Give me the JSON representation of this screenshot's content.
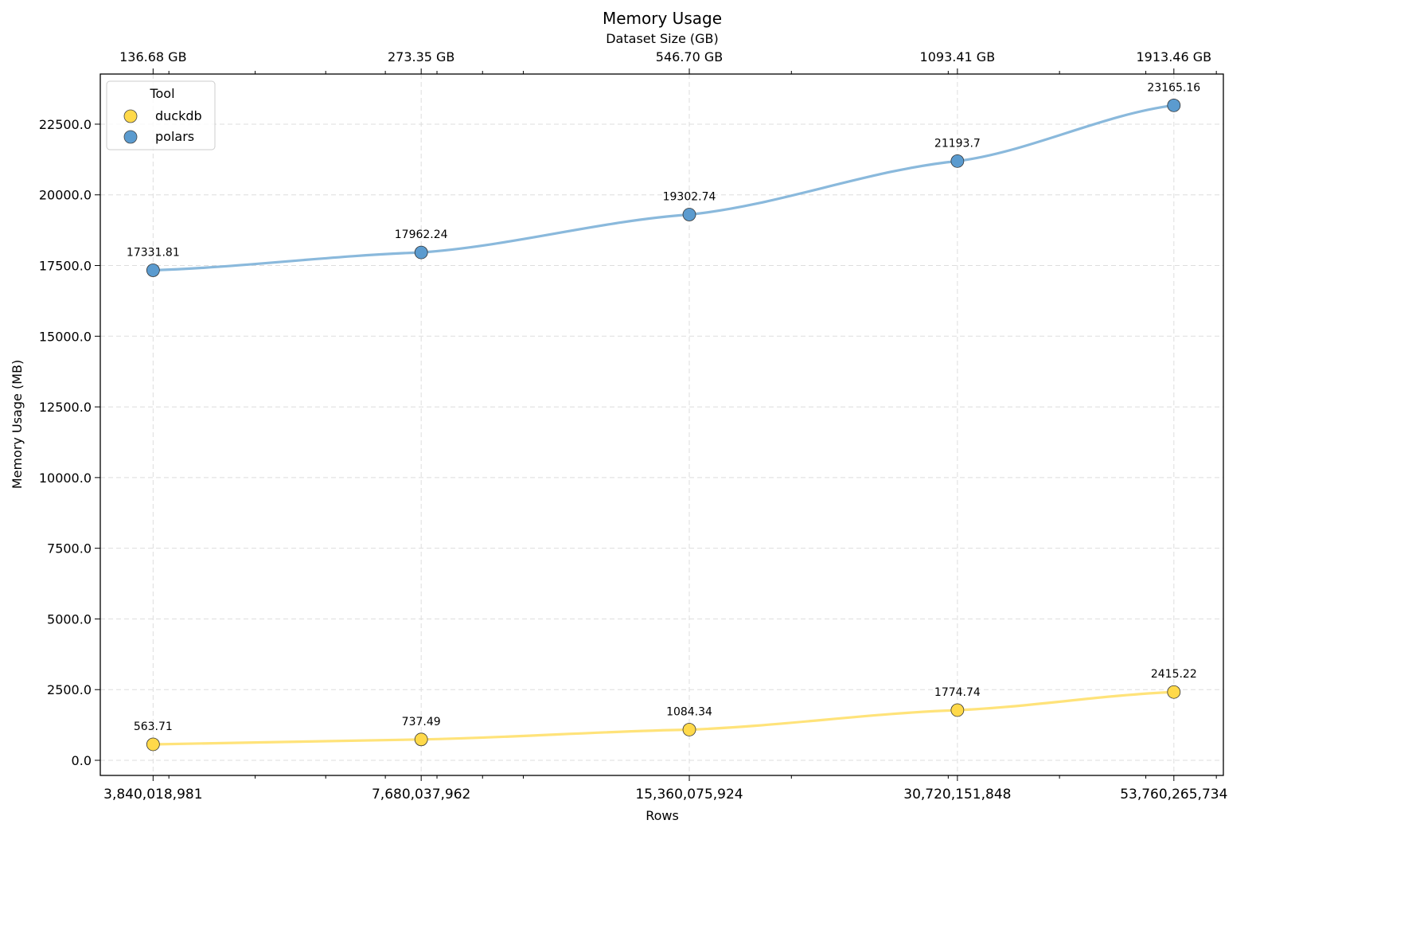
{
  "chart_data": {
    "type": "line",
    "title": "Memory Usage",
    "xlabel": "Rows",
    "ylabel": "Memory Usage (MB)",
    "x_scale": "log",
    "x": [
      3840018981,
      7680037962,
      15360075924,
      30720151848,
      53760265734
    ],
    "x_tick_labels": [
      "3,840,018,981",
      "7,680,037,962",
      "15,360,075,924",
      "30,720,151,848",
      "53,760,265,734"
    ],
    "top_axis": {
      "label": "Dataset Size (GB)",
      "tick_labels": [
        "136.68 GB",
        "273.35 GB",
        "546.70 GB",
        "1093.41 GB",
        "1913.46 GB"
      ]
    },
    "xlim": [
      3350000000,
      61100000000
    ],
    "ylim": [
      -535,
      24273
    ],
    "y_ticks": [
      0,
      2500,
      5000,
      7500,
      10000,
      12500,
      15000,
      17500,
      20000,
      22500
    ],
    "y_tick_labels": [
      "0.0",
      "2500.0",
      "5000.0",
      "7500.0",
      "10000.0",
      "12500.0",
      "15000.0",
      "17500.0",
      "20000.0",
      "22500.0"
    ],
    "grid": true,
    "legend": {
      "title": "Tool",
      "placement": "top-left"
    },
    "series": [
      {
        "name": "duckdb",
        "color": "#FFD94A",
        "line_color": "#FFE37A",
        "values": [
          563.71,
          737.49,
          1084.34,
          1774.74,
          2415.22
        ],
        "labels": [
          "563.71",
          "737.49",
          "1084.34",
          "1774.74",
          "2415.22"
        ]
      },
      {
        "name": "polars",
        "color": "#5B9BCF",
        "line_color": "#8AB9DC",
        "values": [
          17331.81,
          17962.24,
          19302.74,
          21193.7,
          23165.16
        ],
        "labels": [
          "17331.81",
          "17962.24",
          "19302.74",
          "21193.7",
          "23165.16"
        ]
      }
    ]
  }
}
